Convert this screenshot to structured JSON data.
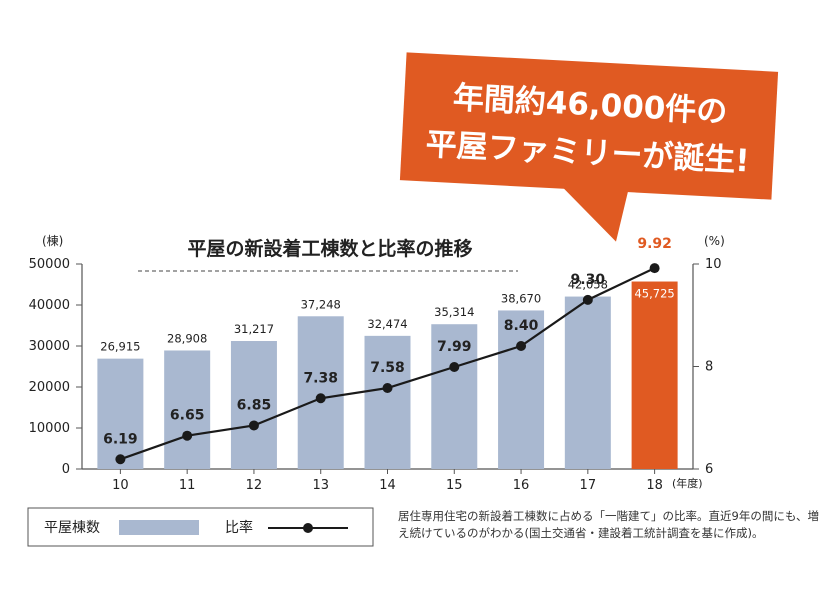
{
  "chart_data": {
    "type": "bar",
    "title": "平屋の新設着工棟数と比率の推移",
    "left_unit": "(棟)",
    "right_unit": "(%)",
    "x_unit": "(年度)",
    "categories": [
      "10",
      "11",
      "12",
      "13",
      "14",
      "15",
      "16",
      "17",
      "18"
    ],
    "series": [
      {
        "name": "平屋棟数",
        "type": "bar",
        "axis": "left",
        "values": [
          26915,
          28908,
          31217,
          37248,
          32474,
          35314,
          38670,
          42058,
          45725
        ],
        "labels": [
          "26,915",
          "28,908",
          "31,217",
          "37,248",
          "32,474",
          "35,314",
          "38,670",
          "42,058",
          "45,725"
        ]
      },
      {
        "name": "比率",
        "type": "line",
        "axis": "right",
        "values": [
          6.19,
          6.65,
          6.85,
          7.38,
          7.58,
          7.99,
          8.4,
          9.3,
          9.92
        ],
        "labels": [
          "6.19",
          "6.65",
          "6.85",
          "7.38",
          "7.58",
          "7.99",
          "8.40",
          "9.30",
          "9.92"
        ]
      }
    ],
    "y_left_lim": [
      0,
      50000
    ],
    "y_left_ticks": [
      "0",
      "10000",
      "20000",
      "30000",
      "40000",
      "50000"
    ],
    "y_right_lim": [
      6,
      10
    ],
    "y_right_ticks": [
      "6",
      "8",
      "10"
    ],
    "highlight_index": 8,
    "grid": false
  },
  "callout": {
    "line1": "年間約46,000件の",
    "line2": "平屋ファミリーが誕生!"
  },
  "legend": {
    "bar_label": "平屋棟数",
    "line_label": "比率"
  },
  "footnote": "居住専用住宅の新設着工棟数に占める「一階建て」の比率。直近9年の間にも、増え続けているのがわかる(国土交通省・建設着工統計調査を基に作成)。",
  "colors": {
    "bar": "#a9b8d0",
    "highlight": "#e05a22",
    "line": "#1a1a1a",
    "axis": "#555555",
    "text": "#222222",
    "callout": "#e05a22",
    "callout_text": "#ffffff",
    "value_highlight": "#e05a22"
  }
}
